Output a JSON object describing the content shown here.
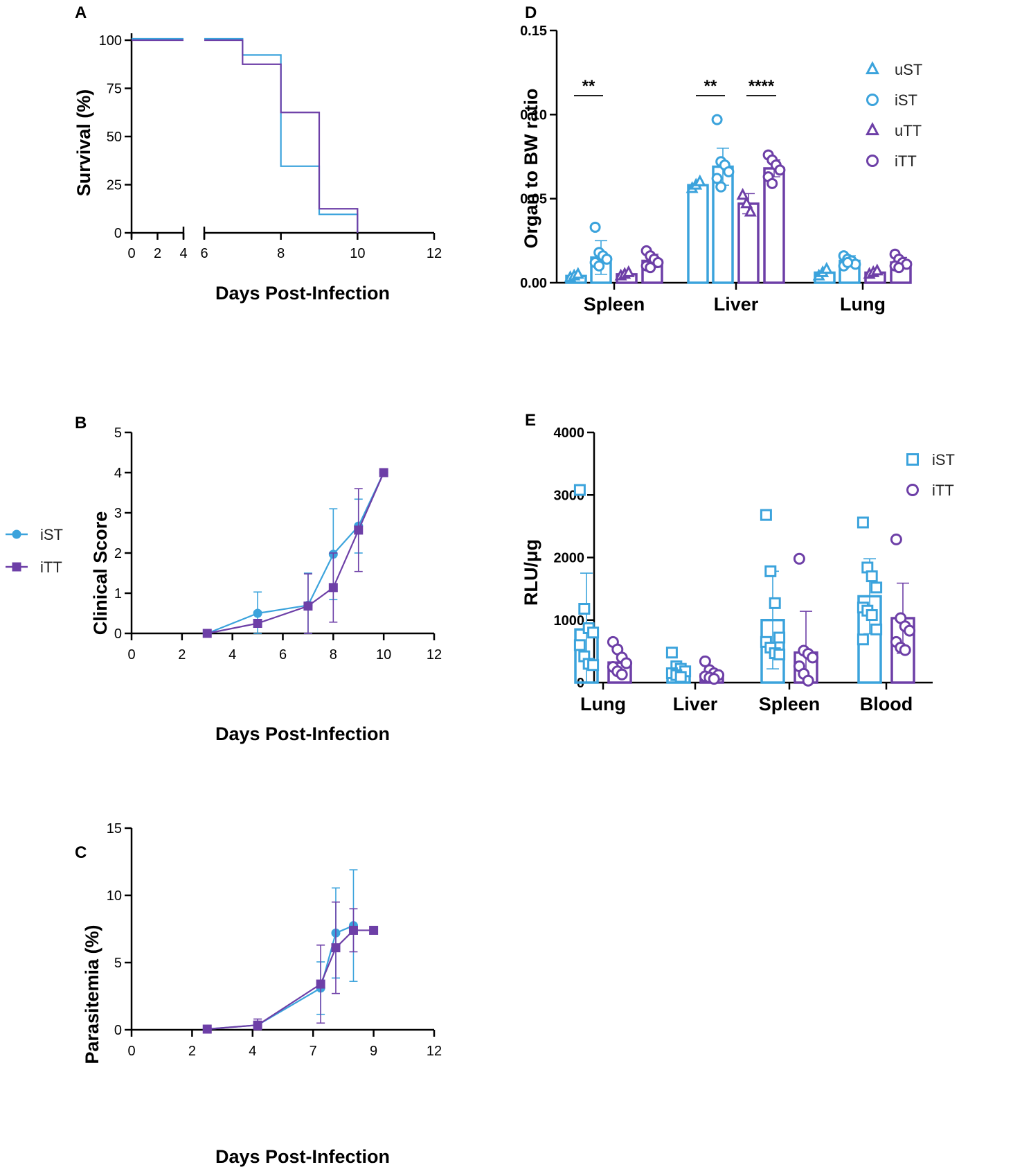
{
  "colors": {
    "ST": "#3ba3dc",
    "TT": "#6d3fa7",
    "axis": "#000000"
  },
  "legend_bc": [
    {
      "name": "iST",
      "marker": "circle",
      "color": "#3ba3dc"
    },
    {
      "name": "iTT",
      "marker": "square",
      "color": "#6d3fa7"
    }
  ],
  "chart_data": [
    {
      "panel": "A",
      "type": "line",
      "subtype": "kaplan-meier step",
      "xlabel": "Days Post-Infection",
      "ylabel": "Survival (%)",
      "xticks": [
        "0",
        "2",
        "4",
        "6",
        "8",
        "10",
        "12"
      ],
      "yticks": [
        "0",
        "25",
        "50",
        "75",
        "100"
      ],
      "xlim": [
        0,
        12
      ],
      "ylim": [
        0,
        100
      ],
      "axis_break": [
        4,
        6
      ],
      "series": [
        {
          "name": "iST",
          "x": [
            0,
            7,
            8,
            9,
            10
          ],
          "y": [
            100,
            92.3,
            34.6,
            9.6,
            0
          ]
        },
        {
          "name": "iTT",
          "x": [
            0,
            7,
            8,
            9,
            10
          ],
          "y": [
            100,
            87.5,
            62.5,
            12.5,
            0
          ]
        }
      ]
    },
    {
      "panel": "B",
      "type": "line",
      "xlabel": "Days Post-Infection",
      "ylabel": "Clinical Score",
      "xticks": [
        "0",
        "2",
        "4",
        "6",
        "8",
        "10",
        "12"
      ],
      "yticks": [
        "0",
        "1",
        "2",
        "3",
        "4",
        "5"
      ],
      "xlim": [
        0,
        12
      ],
      "ylim": [
        0,
        5
      ],
      "series": [
        {
          "name": "iST",
          "x": [
            3,
            5,
            7,
            8,
            9,
            10
          ],
          "y": [
            0,
            0.5,
            0.7,
            1.97,
            2.67,
            4.0
          ],
          "err": [
            0,
            0.53,
            0.8,
            1.13,
            0.67,
            0
          ]
        },
        {
          "name": "iTT",
          "x": [
            3,
            5,
            7,
            8,
            9,
            10
          ],
          "y": [
            0,
            0.25,
            0.68,
            1.14,
            2.57,
            4.0
          ],
          "err": [
            0,
            0,
            0.8,
            0.86,
            1.03,
            0
          ]
        }
      ]
    },
    {
      "panel": "C",
      "type": "line",
      "xlabel": "Days Post-Infection",
      "ylabel": "Parasitemia (%)",
      "xticks": [
        "0",
        "2",
        "4",
        "7",
        "9",
        "12"
      ],
      "ytick_values": [
        0,
        5,
        10,
        15
      ],
      "yticks": [
        "0",
        "5",
        "10",
        "15"
      ],
      "xlim": [
        0,
        12
      ],
      "ylim": [
        0,
        15
      ],
      "series": [
        {
          "name": "iST",
          "x": [
            3,
            5,
            7.5,
            8.1,
            8.8
          ],
          "y": [
            0.05,
            0.35,
            3.1,
            7.2,
            7.75
          ],
          "err": [
            0,
            0.1,
            1.95,
            3.35,
            4.15
          ]
        },
        {
          "name": "iTT",
          "x": [
            3,
            5,
            7.5,
            8.1,
            8.8,
            9.6
          ],
          "y": [
            0.05,
            0.35,
            3.4,
            6.1,
            7.4,
            7.4
          ],
          "err": [
            0,
            0.45,
            2.9,
            3.4,
            1.6,
            0
          ]
        }
      ]
    },
    {
      "panel": "D",
      "type": "bar",
      "xlabel": "",
      "ylabel": "Organ to BW ratio",
      "categories": [
        "Spleen",
        "Liver",
        "Lung"
      ],
      "yticks": [
        "0.00",
        "0.05",
        "0.10",
        "0.15"
      ],
      "ylim": [
        0,
        0.15
      ],
      "series": [
        {
          "name": "uST",
          "marker": "triangle",
          "values": [
            0.004,
            0.058,
            0.006
          ],
          "err": [
            0,
            0,
            0
          ],
          "points": [
            [
              0.003,
              0.004,
              0.005
            ],
            [
              0.056,
              0.058,
              0.06
            ],
            [
              0.004,
              0.006,
              0.008
            ]
          ]
        },
        {
          "name": "iST",
          "marker": "circle",
          "values": [
            0.015,
            0.069,
            0.013
          ],
          "err": [
            0.01,
            0.011,
            0.003
          ],
          "points": [
            [
              0.033,
              0.018,
              0.016,
              0.014,
              0.012,
              0.01
            ],
            [
              0.097,
              0.072,
              0.07,
              0.066,
              0.062,
              0.057
            ],
            [
              0.016,
              0.014,
              0.013,
              0.011,
              0.01,
              0.012
            ]
          ]
        },
        {
          "name": "uTT",
          "marker": "triangle",
          "values": [
            0.005,
            0.047,
            0.006
          ],
          "err": [
            0,
            0.006,
            0
          ],
          "points": [
            [
              0.004,
              0.005,
              0.006
            ],
            [
              0.052,
              0.047,
              0.042
            ],
            [
              0.005,
              0.006,
              0.007
            ]
          ]
        },
        {
          "name": "iTT",
          "marker": "circle",
          "values": [
            0.013,
            0.068,
            0.012
          ],
          "err": [
            0.004,
            0.005,
            0.003
          ],
          "points": [
            [
              0.019,
              0.016,
              0.014,
              0.012,
              0.01,
              0.009
            ],
            [
              0.076,
              0.073,
              0.07,
              0.067,
              0.063,
              0.059
            ],
            [
              0.017,
              0.014,
              0.012,
              0.011,
              0.01,
              0.009
            ]
          ]
        }
      ],
      "significance": [
        {
          "label": "**",
          "category": "Spleen",
          "between": [
            "uST",
            "iST"
          ]
        },
        {
          "label": "**",
          "category": "Liver",
          "between": [
            "uST",
            "iST"
          ]
        },
        {
          "label": "****",
          "category": "Liver",
          "between": [
            "uTT",
            "iTT"
          ]
        }
      ]
    },
    {
      "panel": "E",
      "type": "bar",
      "xlabel": "",
      "ylabel": "RLU/μg",
      "categories": [
        "Lung",
        "Liver",
        "Spleen",
        "Blood"
      ],
      "yticks": [
        "0",
        "1000",
        "2000",
        "3000",
        "4000"
      ],
      "ylim": [
        0,
        4000
      ],
      "series": [
        {
          "name": "iST",
          "marker": "square",
          "values": [
            850,
            200,
            1000,
            1380
          ],
          "err": [
            900,
            0,
            780,
            600
          ],
          "points": [
            [
              3080,
              1180,
              870,
              800,
              600,
              420,
              300,
              280
            ],
            [
              480,
              260,
              220,
              180,
              150,
              120,
              90
            ],
            [
              2680,
              1780,
              1270,
              720,
              650,
              560,
              470,
              450
            ],
            [
              2560,
              1840,
              1700,
              1520,
              1200,
              1150,
              1080,
              850,
              690
            ]
          ]
        },
        {
          "name": "iTT",
          "marker": "circle",
          "values": [
            320,
            130,
            480,
            1030
          ],
          "err": [
            0,
            0,
            660,
            560
          ],
          "points": [
            [
              650,
              530,
              400,
              310,
              250,
              180,
              130
            ],
            [
              340,
              200,
              150,
              120,
              100,
              80,
              60
            ],
            [
              1980,
              510,
              460,
              400,
              260,
              140,
              30
            ],
            [
              2290,
              1030,
              900,
              830,
              650,
              560,
              520
            ]
          ]
        }
      ]
    }
  ],
  "panels": {
    "A": {
      "letter": "A",
      "xlabel": "Days Post-Infection",
      "ylabel": "Survival (%)"
    },
    "B": {
      "letter": "B",
      "xlabel": "Days Post-Infection",
      "ylabel": "Clinical Score"
    },
    "C": {
      "letter": "C",
      "xlabel": "Days Post-Infection",
      "ylabel": "Parasitemia (%)"
    },
    "D": {
      "letter": "D",
      "ylabel": "Organ to BW ratio"
    },
    "E": {
      "letter": "E",
      "ylabel": "RLU/μg"
    }
  }
}
